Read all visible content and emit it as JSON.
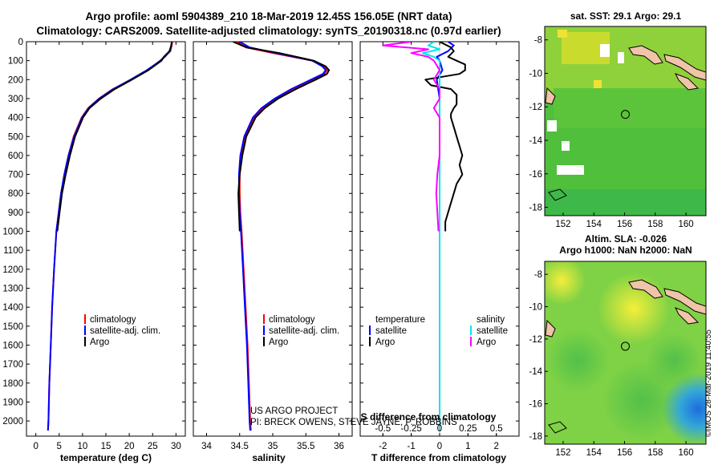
{
  "titles": {
    "line1": "Argo profile: aoml 5904389_210 18-Mar-2019 12.45S 156.05E (NRT data)",
    "line2": "Climatology: CARS2009. Satellite-adjusted climatology: synTS_20190318.nc (0.97d earlier)"
  },
  "depth_ticks": [
    "0",
    "100",
    "200",
    "300",
    "400",
    "500",
    "600",
    "700",
    "800",
    "900",
    "1000",
    "1100",
    "1200",
    "1300",
    "1400",
    "1500",
    "1600",
    "1700",
    "1800",
    "1900",
    "2000"
  ],
  "colors": {
    "climatology": "#ff0000",
    "satellite": "#0000ff",
    "argo": "#000000",
    "sal_satellite": "#00e5ee",
    "sal_argo": "#ff00ff"
  },
  "chart_data": [
    {
      "type": "line",
      "id": "temperature",
      "xlabel": "temperature (deg C)",
      "xlim": [
        -2,
        32
      ],
      "ylim": [
        2080,
        0
      ],
      "xticks": [
        "0",
        "5",
        "10",
        "15",
        "20",
        "25",
        "30"
      ],
      "xtick_values": [
        0,
        5,
        10,
        15,
        20,
        25,
        30
      ],
      "legend": [
        "climatology",
        "satellite-adj. clim.",
        "Argo"
      ],
      "series": [
        {
          "name": "climatology",
          "color": "#ff0000",
          "depth": [
            0,
            20,
            50,
            80,
            100,
            150,
            200,
            250,
            300,
            350,
            400,
            500,
            600,
            700,
            800,
            900,
            1000,
            1200,
            1400,
            1600,
            1800,
            2000,
            2050
          ],
          "values": [
            29.2,
            29.1,
            28.8,
            27.5,
            26.6,
            24.0,
            20.5,
            16.5,
            13.5,
            11.2,
            9.8,
            8.1,
            7.0,
            6.1,
            5.4,
            4.9,
            4.4,
            3.9,
            3.5,
            3.2,
            2.9,
            2.7,
            2.6
          ]
        },
        {
          "name": "satellite-adj. clim.",
          "color": "#0000ff",
          "depth": [
            0,
            20,
            50,
            80,
            100,
            150,
            200,
            250,
            300,
            350,
            400,
            500,
            600,
            700,
            800,
            900,
            1000,
            1200,
            1400,
            1600,
            1800,
            2000,
            2050
          ],
          "values": [
            29.1,
            29.0,
            28.7,
            27.6,
            26.7,
            23.8,
            20.3,
            16.6,
            13.6,
            11.3,
            9.9,
            8.2,
            7.0,
            6.1,
            5.4,
            4.9,
            4.4,
            3.9,
            3.5,
            3.2,
            2.9,
            2.7,
            2.6
          ]
        },
        {
          "name": "Argo",
          "color": "#000000",
          "depth": [
            0,
            20,
            50,
            80,
            100,
            150,
            200,
            250,
            300,
            350,
            400,
            500,
            600,
            700,
            800,
            900,
            1000
          ],
          "values": [
            29.1,
            29.0,
            28.6,
            27.4,
            26.9,
            24.1,
            20.6,
            16.9,
            13.9,
            11.5,
            10.1,
            8.4,
            7.3,
            6.4,
            5.6,
            5.1,
            4.6
          ]
        }
      ]
    },
    {
      "type": "line",
      "id": "salinity",
      "xlabel": "salinity",
      "xlim": [
        33.8,
        36.2
      ],
      "ylim": [
        2080,
        0
      ],
      "xticks": [
        "34",
        "34.5",
        "35",
        "35.5",
        "36"
      ],
      "xtick_values": [
        34,
        34.5,
        35,
        35.5,
        36
      ],
      "legend": [
        "climatology",
        "satellite-adj. clim.",
        "Argo"
      ],
      "series": [
        {
          "name": "climatology",
          "color": "#ff0000",
          "depth": [
            0,
            30,
            60,
            100,
            130,
            150,
            170,
            200,
            250,
            300,
            350,
            400,
            500,
            600,
            700,
            800,
            900,
            1000,
            1200,
            1400,
            1600,
            1800,
            2000,
            2050
          ],
          "values": [
            34.45,
            34.6,
            35.0,
            35.6,
            35.78,
            35.82,
            35.78,
            35.6,
            35.3,
            35.05,
            34.85,
            34.72,
            34.58,
            34.52,
            34.5,
            34.5,
            34.51,
            34.53,
            34.56,
            34.59,
            34.62,
            34.64,
            34.66,
            34.67
          ]
        },
        {
          "name": "satellite-adj. clim.",
          "color": "#0000ff",
          "depth": [
            0,
            30,
            60,
            100,
            130,
            150,
            170,
            200,
            250,
            300,
            350,
            400,
            500,
            600,
            700,
            800,
            900,
            1000,
            1200,
            1400,
            1600,
            1800,
            2000,
            2050
          ],
          "values": [
            34.5,
            34.65,
            35.05,
            35.6,
            35.75,
            35.8,
            35.76,
            35.58,
            35.28,
            35.03,
            34.83,
            34.7,
            34.57,
            34.51,
            34.49,
            34.49,
            34.5,
            34.52,
            34.55,
            34.58,
            34.61,
            34.63,
            34.65,
            34.66
          ]
        },
        {
          "name": "Argo",
          "color": "#000000",
          "depth": [
            0,
            30,
            60,
            100,
            130,
            150,
            170,
            200,
            250,
            300,
            350,
            400,
            500,
            600,
            700,
            800,
            900,
            1000
          ],
          "values": [
            34.4,
            34.6,
            35.1,
            35.62,
            35.8,
            35.85,
            35.82,
            35.65,
            35.35,
            35.08,
            34.88,
            34.74,
            34.6,
            34.54,
            34.5,
            34.48,
            34.49,
            34.5
          ]
        }
      ]
    },
    {
      "type": "line",
      "id": "difference",
      "xlabel": "T difference from climatology",
      "xlabel_top": "S difference from climatology",
      "xlim": [
        -2.8,
        2.8
      ],
      "ylim": [
        2080,
        0
      ],
      "xticks": [
        "-2",
        "-1",
        "0",
        "1",
        "2"
      ],
      "xtick_values": [
        -2,
        -1,
        0,
        1,
        2
      ],
      "sticks": [
        "-0.5",
        "-0.25",
        "0",
        "0.25",
        "0.5"
      ],
      "stick_values": [
        -0.5,
        -0.25,
        0,
        0.25,
        0.5
      ],
      "legend_left_title": "temperature",
      "legend_right_title": "salinity",
      "legend_left": [
        "satellite",
        "Argo"
      ],
      "legend_right": [
        "satellite",
        "Argo"
      ],
      "series": [
        {
          "name": "T satellite",
          "color": "#0000ff",
          "depth": [
            0,
            20,
            50,
            80,
            100,
            150,
            200,
            300,
            400,
            600,
            800,
            1000,
            2050
          ],
          "values": [
            0.3,
            0.5,
            0.3,
            -0.1,
            0.0,
            0.1,
            -0.1,
            0.0,
            0.0,
            0.0,
            0.0,
            0.0,
            0.0
          ]
        },
        {
          "name": "T Argo",
          "color": "#000000",
          "depth": [
            0,
            30,
            50,
            80,
            100,
            120,
            150,
            170,
            200,
            230,
            250,
            280,
            300,
            330,
            350,
            380,
            400,
            450,
            500,
            550,
            600,
            650,
            700,
            750,
            800,
            850,
            900,
            950,
            1000
          ],
          "values": [
            0.0,
            0.4,
            0.5,
            0.3,
            0.6,
            0.9,
            0.9,
            0.7,
            -0.5,
            -0.3,
            0.4,
            0.6,
            0.6,
            0.6,
            0.5,
            0.4,
            0.4,
            0.5,
            0.6,
            0.7,
            0.8,
            0.7,
            0.8,
            0.6,
            0.5,
            0.4,
            0.3,
            0.2,
            0.2
          ]
        },
        {
          "name": "S satellite",
          "color": "#00e5ee",
          "depth": [
            0,
            20,
            40,
            60,
            80,
            100,
            150,
            200,
            300,
            400,
            600,
            800,
            1000,
            2050
          ],
          "values": [
            -0.05,
            -0.1,
            0.0,
            -0.15,
            -0.05,
            0.0,
            0.0,
            0.0,
            0.0,
            0.0,
            0.0,
            0.0,
            0.0,
            0.0
          ]
        },
        {
          "name": "S Argo",
          "color": "#ff00ff",
          "depth": [
            0,
            20,
            40,
            60,
            80,
            100,
            150,
            200,
            250,
            300,
            350,
            400,
            500,
            600,
            700,
            800,
            900,
            1000
          ],
          "values": [
            -0.25,
            -0.5,
            -0.1,
            -0.25,
            -0.1,
            -0.05,
            0.0,
            -0.05,
            0.0,
            0.0,
            -0.05,
            0.0,
            0.0,
            0.0,
            -0.02,
            -0.03,
            -0.02,
            -0.01
          ]
        }
      ]
    },
    {
      "type": "heatmap",
      "id": "sst-map",
      "title": "sat. SST: 29.1 Argo: 29.1",
      "xticks": [
        "152",
        "154",
        "156",
        "158",
        "160"
      ],
      "xtick_values": [
        152,
        154,
        156,
        158,
        160
      ],
      "yticks": [
        "-8",
        "-10",
        "-12",
        "-14",
        "-16",
        "-18"
      ],
      "ytick_values": [
        -8,
        -10,
        -12,
        -14,
        -16,
        -18
      ],
      "xlim": [
        150.8,
        161.3
      ],
      "ylim": [
        -18.5,
        -7.2
      ],
      "marker": [
        156.05,
        -12.45
      ]
    },
    {
      "type": "heatmap",
      "id": "sla-map",
      "title_line1": "Altim. SLA: -0.026",
      "title_line2": "Argo h1000: NaN h2000: NaN",
      "xticks": [
        "152",
        "154",
        "156",
        "158",
        "160"
      ],
      "xtick_values": [
        152,
        154,
        156,
        158,
        160
      ],
      "yticks": [
        "-8",
        "-10",
        "-12",
        "-14",
        "-16",
        "-18"
      ],
      "ytick_values": [
        -8,
        -10,
        -12,
        -14,
        -16,
        -18
      ],
      "xlim": [
        150.8,
        161.3
      ],
      "ylim": [
        -18.5,
        -7.2
      ],
      "marker": [
        156.05,
        -12.45
      ]
    }
  ],
  "credits": {
    "line1": "US ARGO PROJECT",
    "line2": "PI: BRECK OWENS, STEVE JAYNE, P. ROBBINS",
    "imos": "©IMOS 28-Mar-2019 11:40:55"
  }
}
